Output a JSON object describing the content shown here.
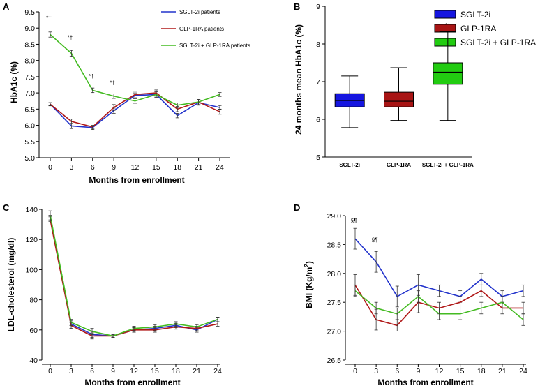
{
  "chart_data": [
    {
      "panel": "A",
      "type": "line",
      "x": [
        0,
        3,
        6,
        9,
        12,
        15,
        18,
        21,
        24
      ],
      "xlabel": "Months from enrollment",
      "ylabel": "HbA1c (%)",
      "ylim": [
        5.0,
        9.5
      ],
      "yticks": [
        "5.0",
        "5.5",
        "6.0",
        "6.5",
        "7.0",
        "7.5",
        "8.0",
        "8.5",
        "9.0",
        "9.5"
      ],
      "legend_position": "top-right",
      "series": [
        {
          "name": "SGLT-2i patients",
          "color": "#2233cc",
          "values": [
            6.65,
            5.98,
            5.93,
            6.45,
            6.92,
            6.95,
            6.3,
            6.7,
            6.55
          ],
          "err": [
            0.05,
            0.08,
            0.06,
            0.08,
            0.08,
            0.1,
            0.07,
            0.08,
            0.06
          ]
        },
        {
          "name": "GLP-1RA patients",
          "color": "#b01818",
          "values": [
            6.65,
            6.12,
            5.95,
            6.55,
            6.95,
            7.0,
            6.5,
            6.72,
            6.42
          ],
          "err": [
            0.04,
            0.07,
            0.05,
            0.09,
            0.1,
            0.09,
            0.08,
            0.08,
            0.08
          ]
        },
        {
          "name": "SGLT-2i + GLP-1RA patients",
          "color": "#44bb22",
          "values": [
            8.8,
            8.22,
            7.08,
            6.9,
            6.75,
            6.95,
            6.62,
            6.72,
            6.95
          ],
          "err": [
            0.08,
            0.09,
            0.07,
            0.07,
            0.07,
            0.08,
            0.07,
            0.08,
            0.06
          ]
        }
      ],
      "annotations": [
        {
          "x": 0,
          "text": "*†",
          "at": 9.25
        },
        {
          "x": 3,
          "text": "*†",
          "at": 8.65
        },
        {
          "x": 6,
          "text": "*†",
          "at": 7.45
        },
        {
          "x": 9,
          "text": "*†",
          "at": 7.25
        }
      ]
    },
    {
      "panel": "B",
      "type": "box",
      "categories": [
        "SGLT-2i",
        "GLP-1RA",
        "SGLT-2i + GLP-1RA"
      ],
      "ylabel": "24 months mean HbA1c (%)",
      "ylim": [
        5,
        9
      ],
      "yticks": [
        "5",
        "6",
        "7",
        "8",
        "9"
      ],
      "legend_position": "top-right",
      "boxes": [
        {
          "name": "SGLT-2i",
          "color": "#1515e0",
          "min": 5.78,
          "q1": 6.33,
          "median": 6.5,
          "q3": 6.68,
          "max": 7.15
        },
        {
          "name": "GLP-1RA",
          "color": "#a81414",
          "min": 5.97,
          "q1": 6.33,
          "median": 6.48,
          "q3": 6.72,
          "max": 7.37
        },
        {
          "name": "SGLT-2i + GLP-1RA",
          "color": "#22cc11",
          "min": 5.97,
          "q1": 6.93,
          "median": 7.25,
          "q3": 7.5,
          "max": 8.33
        }
      ],
      "annotation": {
        "category": "SGLT-2i + GLP-1RA",
        "text": "*†"
      }
    },
    {
      "panel": "C",
      "type": "line",
      "x": [
        0,
        3,
        6,
        9,
        12,
        15,
        18,
        21,
        24
      ],
      "xlabel": "Months from enrollment",
      "ylabel": "LDL-cholesterol (mg/dl)",
      "ylim": [
        40,
        140
      ],
      "yticks": [
        "40",
        "60",
        "80",
        "100",
        "120",
        "140"
      ],
      "series": [
        {
          "name": "SGLT-2i",
          "color": "#2233cc",
          "values": [
            134,
            64,
            57,
            56,
            60,
            61,
            63,
            60,
            67
          ],
          "err": [
            2,
            2,
            2,
            1,
            1.5,
            1.5,
            1.5,
            1.5,
            1.5
          ]
        },
        {
          "name": "GLP-1RA",
          "color": "#b01818",
          "values": [
            133,
            63,
            56,
            56,
            60,
            60,
            62,
            61,
            64
          ],
          "err": [
            2,
            2,
            2,
            1,
            1.5,
            1.5,
            1.5,
            1.5,
            1.5
          ]
        },
        {
          "name": "SGLT-2i + GLP-1RA",
          "color": "#44bb22",
          "values": [
            136,
            65,
            59,
            56,
            61,
            62,
            64,
            62,
            67
          ],
          "err": [
            3,
            2,
            2,
            1,
            1.5,
            1.5,
            1.5,
            1.5,
            1.5
          ]
        }
      ]
    },
    {
      "panel": "D",
      "type": "line",
      "x": [
        0,
        3,
        6,
        9,
        12,
        15,
        18,
        21,
        24
      ],
      "xlabel": "Months from enrollment",
      "ylabel_main": "BMI (Kg/m",
      "ylabel_sup": "2",
      "ylabel_end": ")",
      "ylim": [
        26.5,
        29.0
      ],
      "yticks": [
        "26.5",
        "27.0",
        "27.5",
        "28.0",
        "28.5",
        "29.0"
      ],
      "series": [
        {
          "name": "SGLT-2i",
          "color": "#2233cc",
          "values": [
            28.6,
            28.2,
            27.6,
            27.8,
            27.7,
            27.6,
            27.9,
            27.6,
            27.7
          ],
          "err": [
            0.18,
            0.18,
            0.18,
            0.18,
            0.1,
            0.1,
            0.1,
            0.1,
            0.1
          ]
        },
        {
          "name": "GLP-1RA",
          "color": "#b01818",
          "values": [
            27.8,
            27.2,
            27.1,
            27.5,
            27.4,
            27.5,
            27.7,
            27.4,
            27.4
          ],
          "err": [
            0.18,
            0.18,
            0.1,
            0.18,
            0.1,
            0.1,
            0.1,
            0.1,
            0.1
          ]
        },
        {
          "name": "SGLT-2i + GLP-1RA",
          "color": "#44bb22",
          "values": [
            27.7,
            27.4,
            27.3,
            27.6,
            27.3,
            27.3,
            27.4,
            27.5,
            27.2
          ],
          "err": [
            0.1,
            0.1,
            0.1,
            0.1,
            0.1,
            0.1,
            0.1,
            0.1,
            0.1
          ]
        }
      ],
      "annotations": [
        {
          "x": 0,
          "text": "§¶",
          "at": 28.88
        },
        {
          "x": 3,
          "text": "§¶",
          "at": 28.55
        }
      ]
    }
  ]
}
